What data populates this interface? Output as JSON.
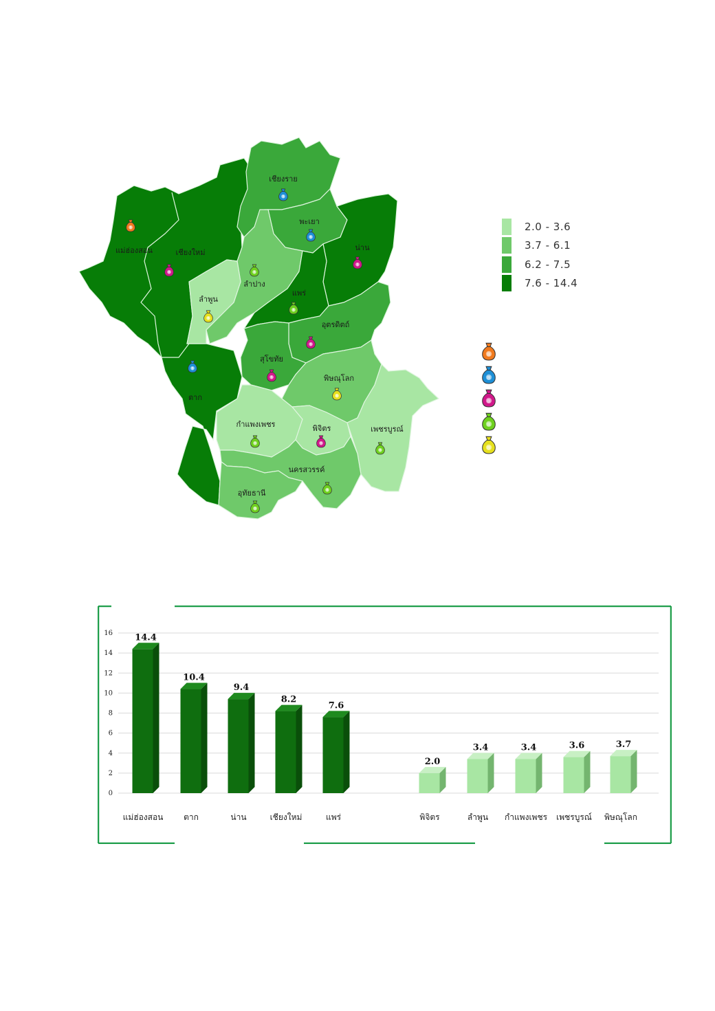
{
  "map": {
    "provinces": [
      {
        "name": "เชียงราย",
        "icon": "blue-money-bag-icon"
      },
      {
        "name": "พะเยา",
        "icon": "blue-money-bag-icon"
      },
      {
        "name": "น่าน",
        "icon": "magenta-money-bag-icon"
      },
      {
        "name": "แม่ฮ่องสอน",
        "icon": "orange-money-bag-icon"
      },
      {
        "name": "เชียงใหม่",
        "icon": "magenta-money-bag-icon"
      },
      {
        "name": "ลำปาง",
        "icon": "green-money-bag-icon"
      },
      {
        "name": "ลำพูน",
        "icon": "yellow-money-bag-icon"
      },
      {
        "name": "แพร่",
        "icon": "green-money-bag-icon"
      },
      {
        "name": "อุตรดิตถ์",
        "icon": "magenta-money-bag-icon"
      },
      {
        "name": "สุโขทัย",
        "icon": "magenta-money-bag-icon"
      },
      {
        "name": "ตาก",
        "icon": "blue-money-bag-icon"
      },
      {
        "name": "พิษณุโลก",
        "icon": "yellow-money-bag-icon"
      },
      {
        "name": "กำแพงเพชร",
        "icon": "green-money-bag-icon"
      },
      {
        "name": "พิจิตร",
        "icon": "magenta-money-bag-icon"
      },
      {
        "name": "เพชรบูรณ์",
        "icon": "green-money-bag-icon"
      },
      {
        "name": "นครสวรรค์",
        "icon": "green-money-bag-icon"
      },
      {
        "name": "อุทัยธานี",
        "icon": "green-money-bag-icon"
      }
    ],
    "legend": [
      {
        "label": "2.0 - 3.6",
        "color": "#a8e6a3"
      },
      {
        "label": "3.7 - 6.1",
        "color": "#6fc96a"
      },
      {
        "label": "6.2 - 7.5",
        "color": "#3aa83a"
      },
      {
        "label": "7.6 - 14.4",
        "color": "#077d07"
      }
    ],
    "icon_legend": [
      {
        "icon": "orange-money-bag-icon",
        "color": "#f07a1e"
      },
      {
        "icon": "blue-money-bag-icon",
        "color": "#1e8fd6"
      },
      {
        "icon": "magenta-money-bag-icon",
        "color": "#d0188a"
      },
      {
        "icon": "green-money-bag-icon",
        "color": "#6ed01e"
      },
      {
        "icon": "yellow-money-bag-icon",
        "color": "#e6e01e"
      }
    ]
  },
  "chart_data": {
    "type": "bar",
    "categories": [
      "แม่ฮ่องสอน",
      "ตาก",
      "น่าน",
      "เชียงใหม่",
      "แพร่",
      "พิจิตร",
      "ลำพูน",
      "กำแพงเพชร",
      "เพชรบูรณ์",
      "พิษณุโลก"
    ],
    "values": [
      14.4,
      10.4,
      9.4,
      8.2,
      7.6,
      2.0,
      3.4,
      3.4,
      3.6,
      3.7
    ],
    "value_labels": [
      "14.4",
      "10.4",
      "9.4",
      "8.2",
      "7.6",
      "2.0",
      "3.4",
      "3.4",
      "3.6",
      "3.7"
    ],
    "groups": [
      "high",
      "high",
      "high",
      "high",
      "high",
      "low",
      "low",
      "low",
      "low",
      "low"
    ],
    "ylim": [
      0,
      16
    ],
    "yticks": [
      "0",
      "2",
      "4",
      "6",
      "8",
      "10",
      "12",
      "14",
      "16"
    ],
    "grid": true,
    "colors": {
      "high": "#0f6e0f",
      "low": "#a8e6a3",
      "frame": "#1e9e4a"
    }
  }
}
